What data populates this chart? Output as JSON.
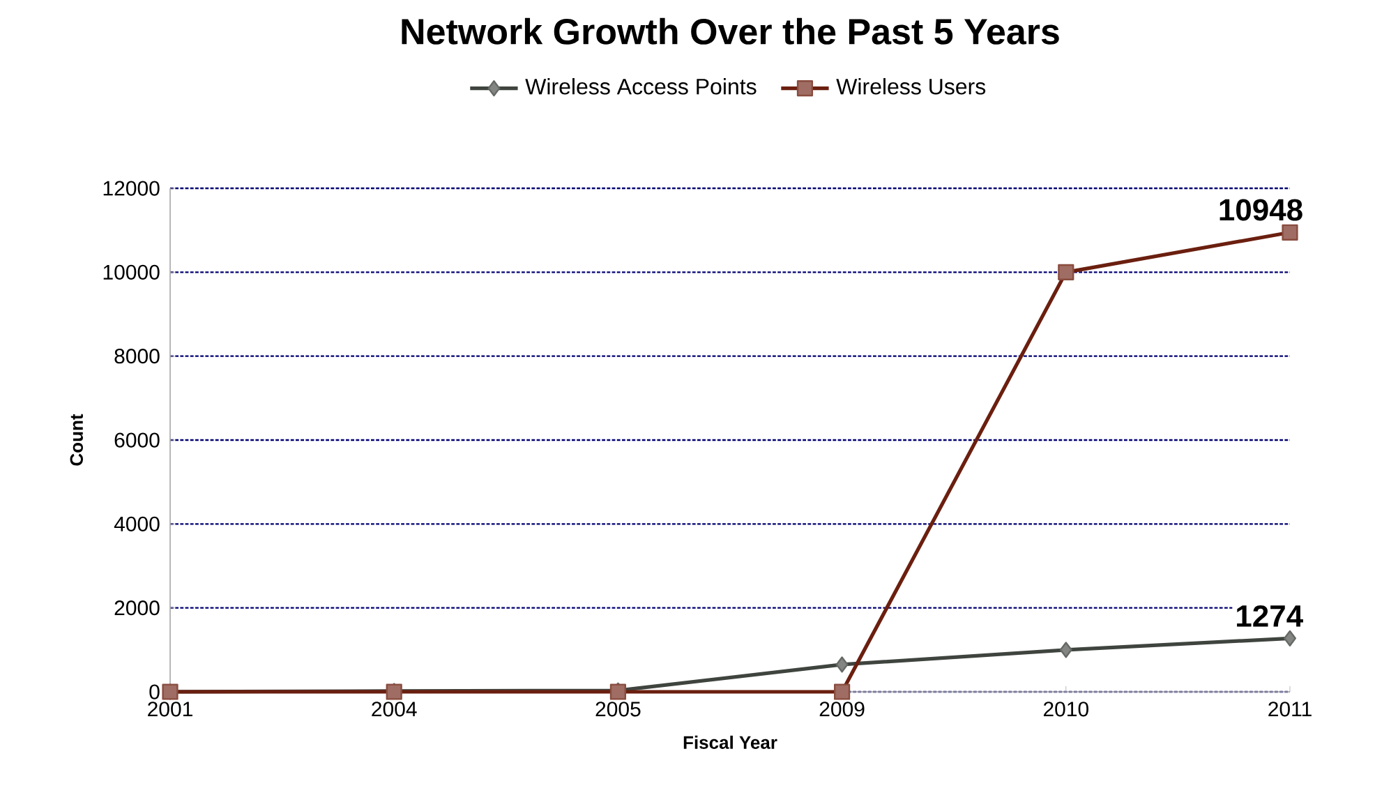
{
  "chart_data": {
    "type": "line",
    "title": "Network Growth Over the Past 5 Years",
    "xlabel": "Fiscal Year",
    "ylabel": "Count",
    "categories": [
      "2001",
      "2004",
      "2005",
      "2009",
      "2010",
      "2011"
    ],
    "series": [
      {
        "name": "Wireless Access Points",
        "color": "#3f443f",
        "marker": "diamond",
        "values": [
          0,
          20,
          30,
          650,
          1000,
          1274
        ],
        "value_labels": [
          null,
          null,
          null,
          null,
          null,
          "1274"
        ]
      },
      {
        "name": "Wireless Users",
        "color": "#6b1f0f",
        "marker": "square",
        "values": [
          0,
          0,
          0,
          0,
          10000,
          10948
        ],
        "value_labels": [
          null,
          null,
          null,
          null,
          null,
          "10948"
        ]
      }
    ],
    "ylim": [
      0,
      12000
    ],
    "yticks": [
      0,
      2000,
      4000,
      6000,
      8000,
      10000,
      12000
    ],
    "grid": "y",
    "legend": "top"
  }
}
